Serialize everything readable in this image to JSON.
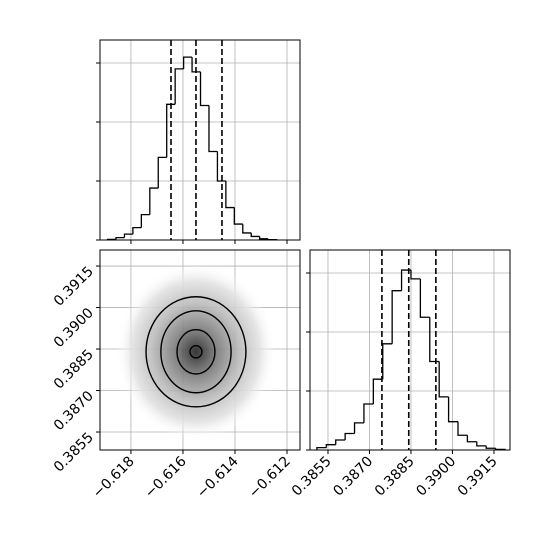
{
  "chart_data": [
    {
      "type": "histogram",
      "bins": [
        -0.6189,
        -0.618575,
        -0.61825,
        -0.617925,
        -0.6176,
        -0.617275,
        -0.61695,
        -0.616625,
        -0.6163,
        -0.615975,
        -0.61565,
        -0.615325,
        -0.615,
        -0.614675,
        -0.61435,
        -0.614025,
        -0.6137,
        -0.613375,
        -0.61305,
        -0.612725,
        -0.6124
      ],
      "values": [
        10,
        40,
        100,
        210,
        430,
        880,
        1400,
        2300,
        2900,
        3100,
        2850,
        2280,
        1500,
        1000,
        550,
        270,
        120,
        60,
        20,
        5
      ],
      "quantiles": [
        -0.61646,
        -0.6155,
        -0.6145
      ],
      "xlim": [
        -0.61919,
        -0.6115
      ],
      "ylim": [
        0,
        3390
      ],
      "yticks": [
        0,
        1000,
        2000,
        3000
      ],
      "grid": true
    },
    {
      "type": "contour",
      "xlim": [
        -0.61919,
        -0.6115
      ],
      "ylim": [
        0.38485,
        0.39208
      ],
      "xticks": [
        {
          "value": -0.618,
          "label": "−0.618"
        },
        {
          "value": -0.616,
          "label": "−0.616"
        },
        {
          "value": -0.614,
          "label": "−0.614"
        },
        {
          "value": -0.612,
          "label": "−0.612"
        }
      ],
      "yticks": [
        0.3855,
        {
          "value": 0.387,
          "label": "0.3870"
        },
        0.3885,
        {
          "value": 0.39,
          "label": "0.3900"
        },
        0.3915
      ],
      "contours": [
        {
          "cx": -0.6155,
          "cy": 0.3884,
          "rx": 0.00192,
          "ry": 0.00199
        },
        {
          "cx": -0.6155,
          "cy": 0.3884,
          "rx": 0.00135,
          "ry": 0.00148
        },
        {
          "cx": -0.6155,
          "cy": 0.3884,
          "rx": 0.00073,
          "ry": 0.0008
        },
        {
          "cx": -0.6155,
          "cy": 0.3884,
          "rx": 0.00023,
          "ry": 0.00022
        }
      ],
      "grid": true
    },
    {
      "type": "histogram",
      "bins": [
        0.3851,
        0.38544,
        0.38578,
        0.38612,
        0.38646,
        0.3868,
        0.38714,
        0.38748,
        0.38782,
        0.38816,
        0.3885,
        0.38884,
        0.38918,
        0.38952,
        0.38986,
        0.3902,
        0.39054,
        0.39088,
        0.39122,
        0.39156,
        0.3919
      ],
      "values": [
        40,
        90,
        170,
        280,
        460,
        780,
        1200,
        1800,
        2700,
        3050,
        2900,
        2250,
        1500,
        900,
        480,
        250,
        140,
        70,
        30,
        10
      ],
      "quantiles": [
        0.38745,
        0.38842,
        0.3894
      ],
      "xlim": [
        0.38485,
        0.39208
      ],
      "xticks": [
        0.3855,
        {
          "value": 0.387,
          "label": "0.3870"
        },
        0.3885,
        {
          "value": 0.39,
          "label": "0.3900"
        },
        0.3915
      ],
      "ylim": [
        0,
        3390
      ],
      "yticks": [
        0,
        1000,
        2000,
        3000
      ],
      "grid": true
    }
  ]
}
